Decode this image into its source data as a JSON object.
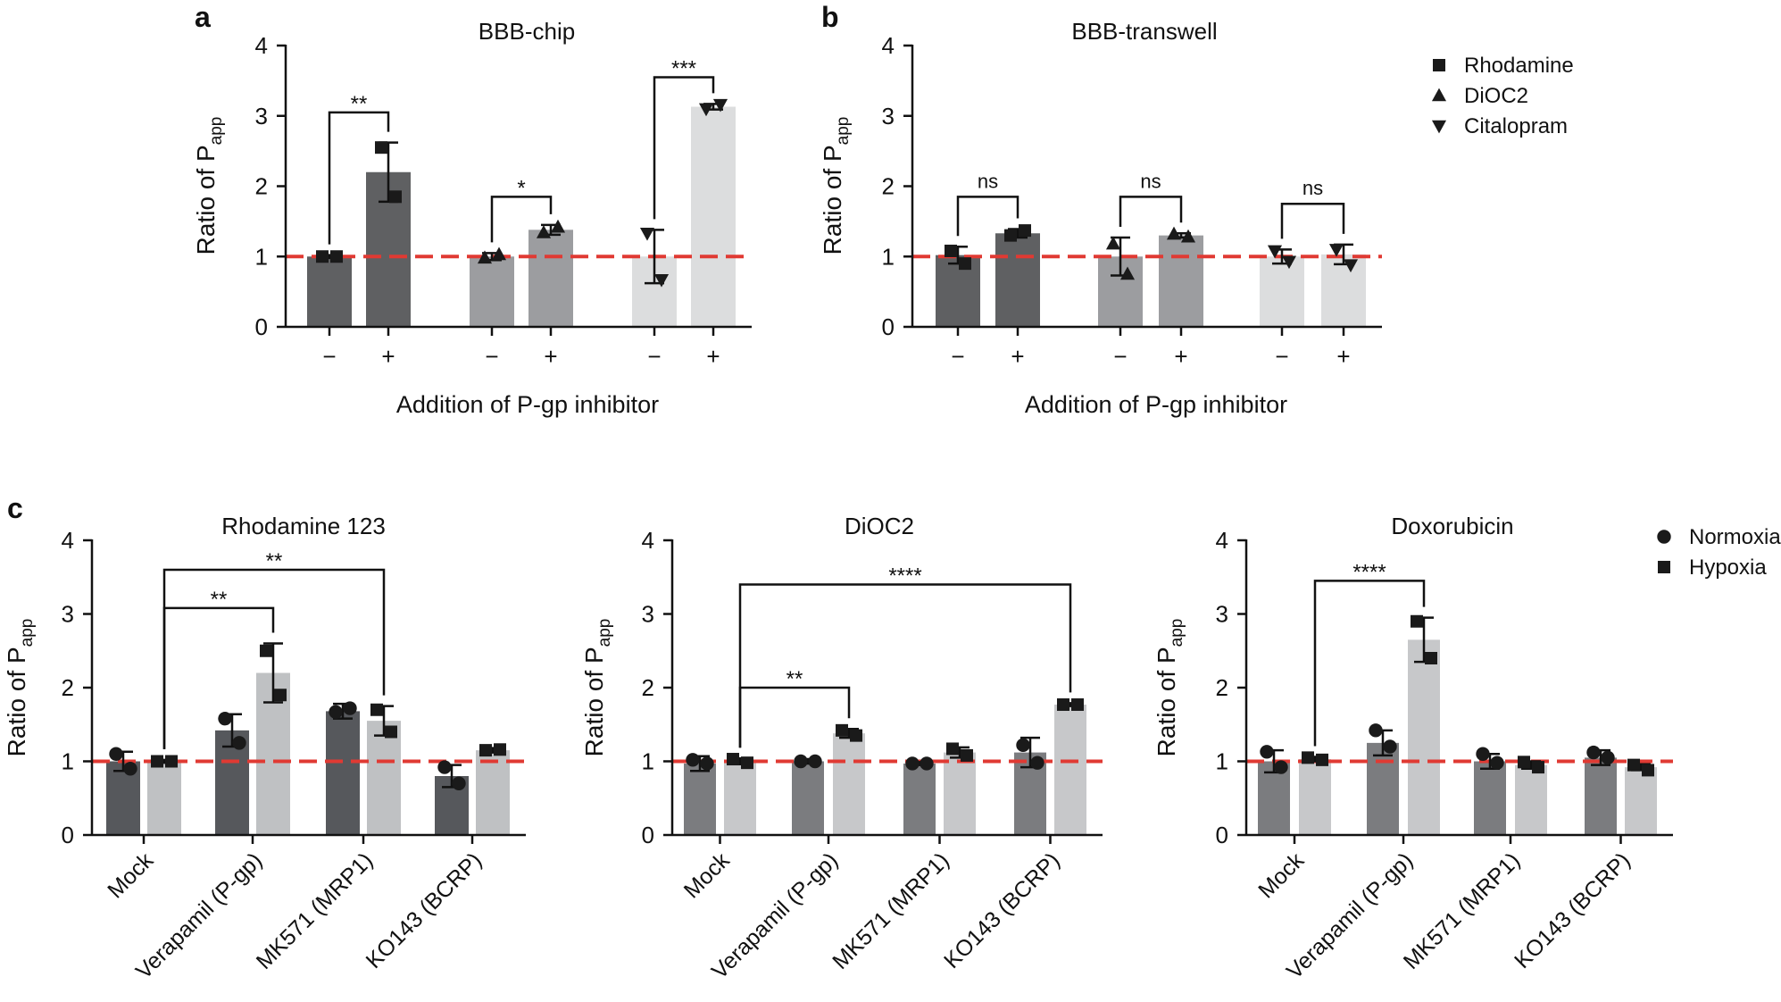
{
  "figure": {
    "panels": [
      {
        "id": "a",
        "label": "a"
      },
      {
        "id": "b",
        "label": "b"
      },
      {
        "id": "c",
        "label": "c"
      }
    ]
  },
  "chart_data": [
    {
      "id": "a",
      "type": "bar",
      "title": "BBB-chip",
      "xlabel": "Addition of P-gp inhibitor",
      "ylabel_main": "Ratio of P",
      "ylabel_sub": "app",
      "ylim": [
        0,
        4
      ],
      "yticks": [
        "0",
        "1",
        "2",
        "3",
        "4"
      ],
      "reference_line": 1,
      "xtick_labels": [
        "−",
        "+",
        "−",
        "+",
        "−",
        "+"
      ],
      "bars": [
        {
          "group": "Rhodamine",
          "inhibitor": "−",
          "value": 1.0,
          "err": 0.02,
          "color": "#5f6062",
          "marker": "square",
          "points": [
            1.0,
            1.0
          ]
        },
        {
          "group": "Rhodamine",
          "inhibitor": "+",
          "value": 2.2,
          "err": 0.42,
          "color": "#5f6062",
          "marker": "square",
          "points": [
            2.55,
            1.85
          ]
        },
        {
          "group": "DiOC2",
          "inhibitor": "−",
          "value": 1.0,
          "err": 0.05,
          "color": "#9c9da0",
          "marker": "triangle",
          "points": [
            0.98,
            1.03
          ]
        },
        {
          "group": "DiOC2",
          "inhibitor": "+",
          "value": 1.38,
          "err": 0.07,
          "color": "#9c9da0",
          "marker": "triangle",
          "points": [
            1.34,
            1.42
          ]
        },
        {
          "group": "Citalopram",
          "inhibitor": "−",
          "value": 1.0,
          "err": 0.38,
          "color": "#dcddde",
          "marker": "triangle-down",
          "points": [
            1.33,
            0.67
          ]
        },
        {
          "group": "Citalopram",
          "inhibitor": "+",
          "value": 3.13,
          "err": 0.04,
          "color": "#dcddde",
          "marker": "triangle-down",
          "points": [
            3.1,
            3.16
          ]
        }
      ],
      "significance": [
        {
          "from": 0,
          "to": 1,
          "label": "**",
          "y": 3.05
        },
        {
          "from": 2,
          "to": 3,
          "label": "*",
          "y": 1.85
        },
        {
          "from": 4,
          "to": 5,
          "label": "***",
          "y": 3.55
        }
      ]
    },
    {
      "id": "b",
      "type": "bar",
      "title": "BBB-transwell",
      "xlabel": "Addition of P-gp inhibitor",
      "ylabel_main": "Ratio of P",
      "ylabel_sub": "app",
      "ylim": [
        0,
        4
      ],
      "yticks": [
        "0",
        "1",
        "2",
        "3",
        "4"
      ],
      "reference_line": 1,
      "xtick_labels": [
        "−",
        "+",
        "−",
        "+",
        "−",
        "+"
      ],
      "bars": [
        {
          "group": "Rhodamine",
          "inhibitor": "−",
          "value": 1.02,
          "err": 0.12,
          "color": "#5f6062",
          "marker": "square",
          "points": [
            1.08,
            0.9
          ]
        },
        {
          "group": "Rhodamine",
          "inhibitor": "+",
          "value": 1.33,
          "err": 0.06,
          "color": "#5f6062",
          "marker": "square",
          "points": [
            1.3,
            1.37
          ]
        },
        {
          "group": "DiOC2",
          "inhibitor": "−",
          "value": 1.0,
          "err": 0.27,
          "color": "#9c9da0",
          "marker": "triangle",
          "points": [
            1.18,
            0.75
          ]
        },
        {
          "group": "DiOC2",
          "inhibitor": "+",
          "value": 1.3,
          "err": 0.03,
          "color": "#9c9da0",
          "marker": "triangle",
          "points": [
            1.32,
            1.28
          ]
        },
        {
          "group": "Citalopram",
          "inhibitor": "−",
          "value": 1.0,
          "err": 0.1,
          "color": "#dcddde",
          "marker": "triangle-down",
          "points": [
            1.08,
            0.93
          ]
        },
        {
          "group": "Citalopram",
          "inhibitor": "+",
          "value": 1.03,
          "err": 0.14,
          "color": "#dcddde",
          "marker": "triangle-down",
          "points": [
            1.1,
            0.88
          ]
        }
      ],
      "significance": [
        {
          "from": 0,
          "to": 1,
          "label": "ns",
          "y": 1.85
        },
        {
          "from": 2,
          "to": 3,
          "label": "ns",
          "y": 1.85
        },
        {
          "from": 4,
          "to": 5,
          "label": "ns",
          "y": 1.75
        }
      ]
    },
    {
      "id": "c1",
      "type": "bar",
      "title": "Rhodamine 123",
      "ylabel_main": "Ratio of P",
      "ylabel_sub": "app",
      "ylim": [
        0,
        4
      ],
      "yticks": [
        "0",
        "1",
        "2",
        "3",
        "4"
      ],
      "reference_line": 1,
      "categories": [
        "Mock",
        "Verapamil (P-gp)",
        "MK571 (MRP1)",
        "KO143 (BCRP)"
      ],
      "bars": [
        {
          "category": "Mock",
          "condition": "Normoxia",
          "value": 1.0,
          "err": 0.13,
          "color": "#56585c",
          "marker": "circle",
          "points": [
            1.1,
            0.9
          ]
        },
        {
          "category": "Mock",
          "condition": "Hypoxia",
          "value": 1.0,
          "err": 0.02,
          "color": "#bfc1c3",
          "marker": "square",
          "points": [
            1.0,
            1.0
          ]
        },
        {
          "category": "Verapamil (P-gp)",
          "condition": "Normoxia",
          "value": 1.42,
          "err": 0.22,
          "color": "#56585c",
          "marker": "circle",
          "points": [
            1.58,
            1.25
          ]
        },
        {
          "category": "Verapamil (P-gp)",
          "condition": "Hypoxia",
          "value": 2.2,
          "err": 0.4,
          "color": "#bfc1c3",
          "marker": "square",
          "points": [
            2.5,
            1.9
          ]
        },
        {
          "category": "MK571 (MRP1)",
          "condition": "Normoxia",
          "value": 1.68,
          "err": 0.1,
          "color": "#56585c",
          "marker": "circle",
          "points": [
            1.67,
            1.72
          ]
        },
        {
          "category": "MK571 (MRP1)",
          "condition": "Hypoxia",
          "value": 1.55,
          "err": 0.2,
          "color": "#bfc1c3",
          "marker": "square",
          "points": [
            1.7,
            1.4
          ]
        },
        {
          "category": "KO143 (BCRP)",
          "condition": "Normoxia",
          "value": 0.8,
          "err": 0.15,
          "color": "#56585c",
          "marker": "circle",
          "points": [
            0.92,
            0.7
          ]
        },
        {
          "category": "KO143 (BCRP)",
          "condition": "Hypoxia",
          "value": 1.15,
          "err": 0.03,
          "color": "#bfc1c3",
          "marker": "square",
          "points": [
            1.15,
            1.16
          ]
        }
      ],
      "significance": [
        {
          "from": 1,
          "to": 3,
          "label": "**",
          "y": 3.08
        },
        {
          "from": 1,
          "to": 5,
          "label": "**",
          "y": 3.6
        }
      ]
    },
    {
      "id": "c2",
      "type": "bar",
      "title": "DiOC2",
      "ylabel_main": "Ratio of P",
      "ylabel_sub": "app",
      "ylim": [
        0,
        4
      ],
      "yticks": [
        "0",
        "1",
        "2",
        "3",
        "4"
      ],
      "reference_line": 1,
      "categories": [
        "Mock",
        "Verapamil (P-gp)",
        "MK571 (MRP1)",
        "KO143 (BCRP)"
      ],
      "bars": [
        {
          "category": "Mock",
          "condition": "Normoxia",
          "value": 0.97,
          "err": 0.1,
          "color": "#7b7c7f",
          "marker": "circle",
          "points": [
            1.02,
            0.97
          ]
        },
        {
          "category": "Mock",
          "condition": "Hypoxia",
          "value": 1.0,
          "err": 0.04,
          "color": "#c7c8ca",
          "marker": "square",
          "points": [
            1.03,
            0.98
          ]
        },
        {
          "category": "Verapamil (P-gp)",
          "condition": "Normoxia",
          "value": 1.0,
          "err": 0.03,
          "color": "#7b7c7f",
          "marker": "circle",
          "points": [
            1.0,
            1.0
          ]
        },
        {
          "category": "Verapamil (P-gp)",
          "condition": "Hypoxia",
          "value": 1.38,
          "err": 0.06,
          "color": "#c7c8ca",
          "marker": "square",
          "points": [
            1.42,
            1.35
          ]
        },
        {
          "category": "MK571 (MRP1)",
          "condition": "Normoxia",
          "value": 0.97,
          "err": 0.02,
          "color": "#7b7c7f",
          "marker": "circle",
          "points": [
            0.97,
            0.97
          ]
        },
        {
          "category": "MK571 (MRP1)",
          "condition": "Hypoxia",
          "value": 1.12,
          "err": 0.07,
          "color": "#c7c8ca",
          "marker": "square",
          "points": [
            1.17,
            1.08
          ]
        },
        {
          "category": "KO143 (BCRP)",
          "condition": "Normoxia",
          "value": 1.12,
          "err": 0.2,
          "color": "#7b7c7f",
          "marker": "circle",
          "points": [
            1.22,
            0.98
          ]
        },
        {
          "category": "KO143 (BCRP)",
          "condition": "Hypoxia",
          "value": 1.77,
          "err": 0.02,
          "color": "#c7c8ca",
          "marker": "square",
          "points": [
            1.77,
            1.77
          ]
        }
      ],
      "significance": [
        {
          "from": 1,
          "to": 3,
          "label": "**",
          "y": 2.0
        },
        {
          "from": 1,
          "to": 7,
          "label": "****",
          "y": 3.4
        }
      ]
    },
    {
      "id": "c3",
      "type": "bar",
      "title": "Doxorubicin",
      "ylabel_main": "Ratio of P",
      "ylabel_sub": "app",
      "ylim": [
        0,
        4
      ],
      "yticks": [
        "0",
        "1",
        "2",
        "3",
        "4"
      ],
      "reference_line": 1,
      "categories": [
        "Mock",
        "Verapamil (P-gp)",
        "MK571 (MRP1)",
        "KO143 (BCRP)"
      ],
      "bars": [
        {
          "category": "Mock",
          "condition": "Normoxia",
          "value": 1.0,
          "err": 0.15,
          "color": "#7b7c7f",
          "marker": "circle",
          "points": [
            1.13,
            0.92
          ]
        },
        {
          "category": "Mock",
          "condition": "Hypoxia",
          "value": 1.03,
          "err": 0.03,
          "color": "#c7c8ca",
          "marker": "square",
          "points": [
            1.05,
            1.02
          ]
        },
        {
          "category": "Verapamil (P-gp)",
          "condition": "Normoxia",
          "value": 1.25,
          "err": 0.17,
          "color": "#7b7c7f",
          "marker": "circle",
          "points": [
            1.42,
            1.2
          ]
        },
        {
          "category": "Verapamil (P-gp)",
          "condition": "Hypoxia",
          "value": 2.65,
          "err": 0.3,
          "color": "#c7c8ca",
          "marker": "square",
          "points": [
            2.9,
            2.4
          ]
        },
        {
          "category": "MK571 (MRP1)",
          "condition": "Normoxia",
          "value": 1.0,
          "err": 0.1,
          "color": "#7b7c7f",
          "marker": "circle",
          "points": [
            1.1,
            0.98
          ]
        },
        {
          "category": "MK571 (MRP1)",
          "condition": "Hypoxia",
          "value": 0.95,
          "err": 0.05,
          "color": "#c7c8ca",
          "marker": "square",
          "points": [
            0.99,
            0.92
          ]
        },
        {
          "category": "KO143 (BCRP)",
          "condition": "Normoxia",
          "value": 1.05,
          "err": 0.1,
          "color": "#7b7c7f",
          "marker": "circle",
          "points": [
            1.12,
            1.05
          ]
        },
        {
          "category": "KO143 (BCRP)",
          "condition": "Hypoxia",
          "value": 0.92,
          "err": 0.04,
          "color": "#c7c8ca",
          "marker": "square",
          "points": [
            0.95,
            0.88
          ]
        }
      ],
      "significance": [
        {
          "from": 1,
          "to": 3,
          "label": "****",
          "y": 3.45
        }
      ]
    }
  ],
  "legends": {
    "ab": [
      {
        "marker": "square",
        "label": "Rhodamine"
      },
      {
        "marker": "triangle",
        "label": "DiOC2"
      },
      {
        "marker": "triangle-down",
        "label": "Citalopram"
      }
    ],
    "c": [
      {
        "marker": "circle",
        "label": "Normoxia"
      },
      {
        "marker": "square",
        "label": "Hypoxia"
      }
    ]
  },
  "colors": {
    "reference_line": "#e03a33",
    "axis": "#111111",
    "marker": "#1a1a1a"
  }
}
